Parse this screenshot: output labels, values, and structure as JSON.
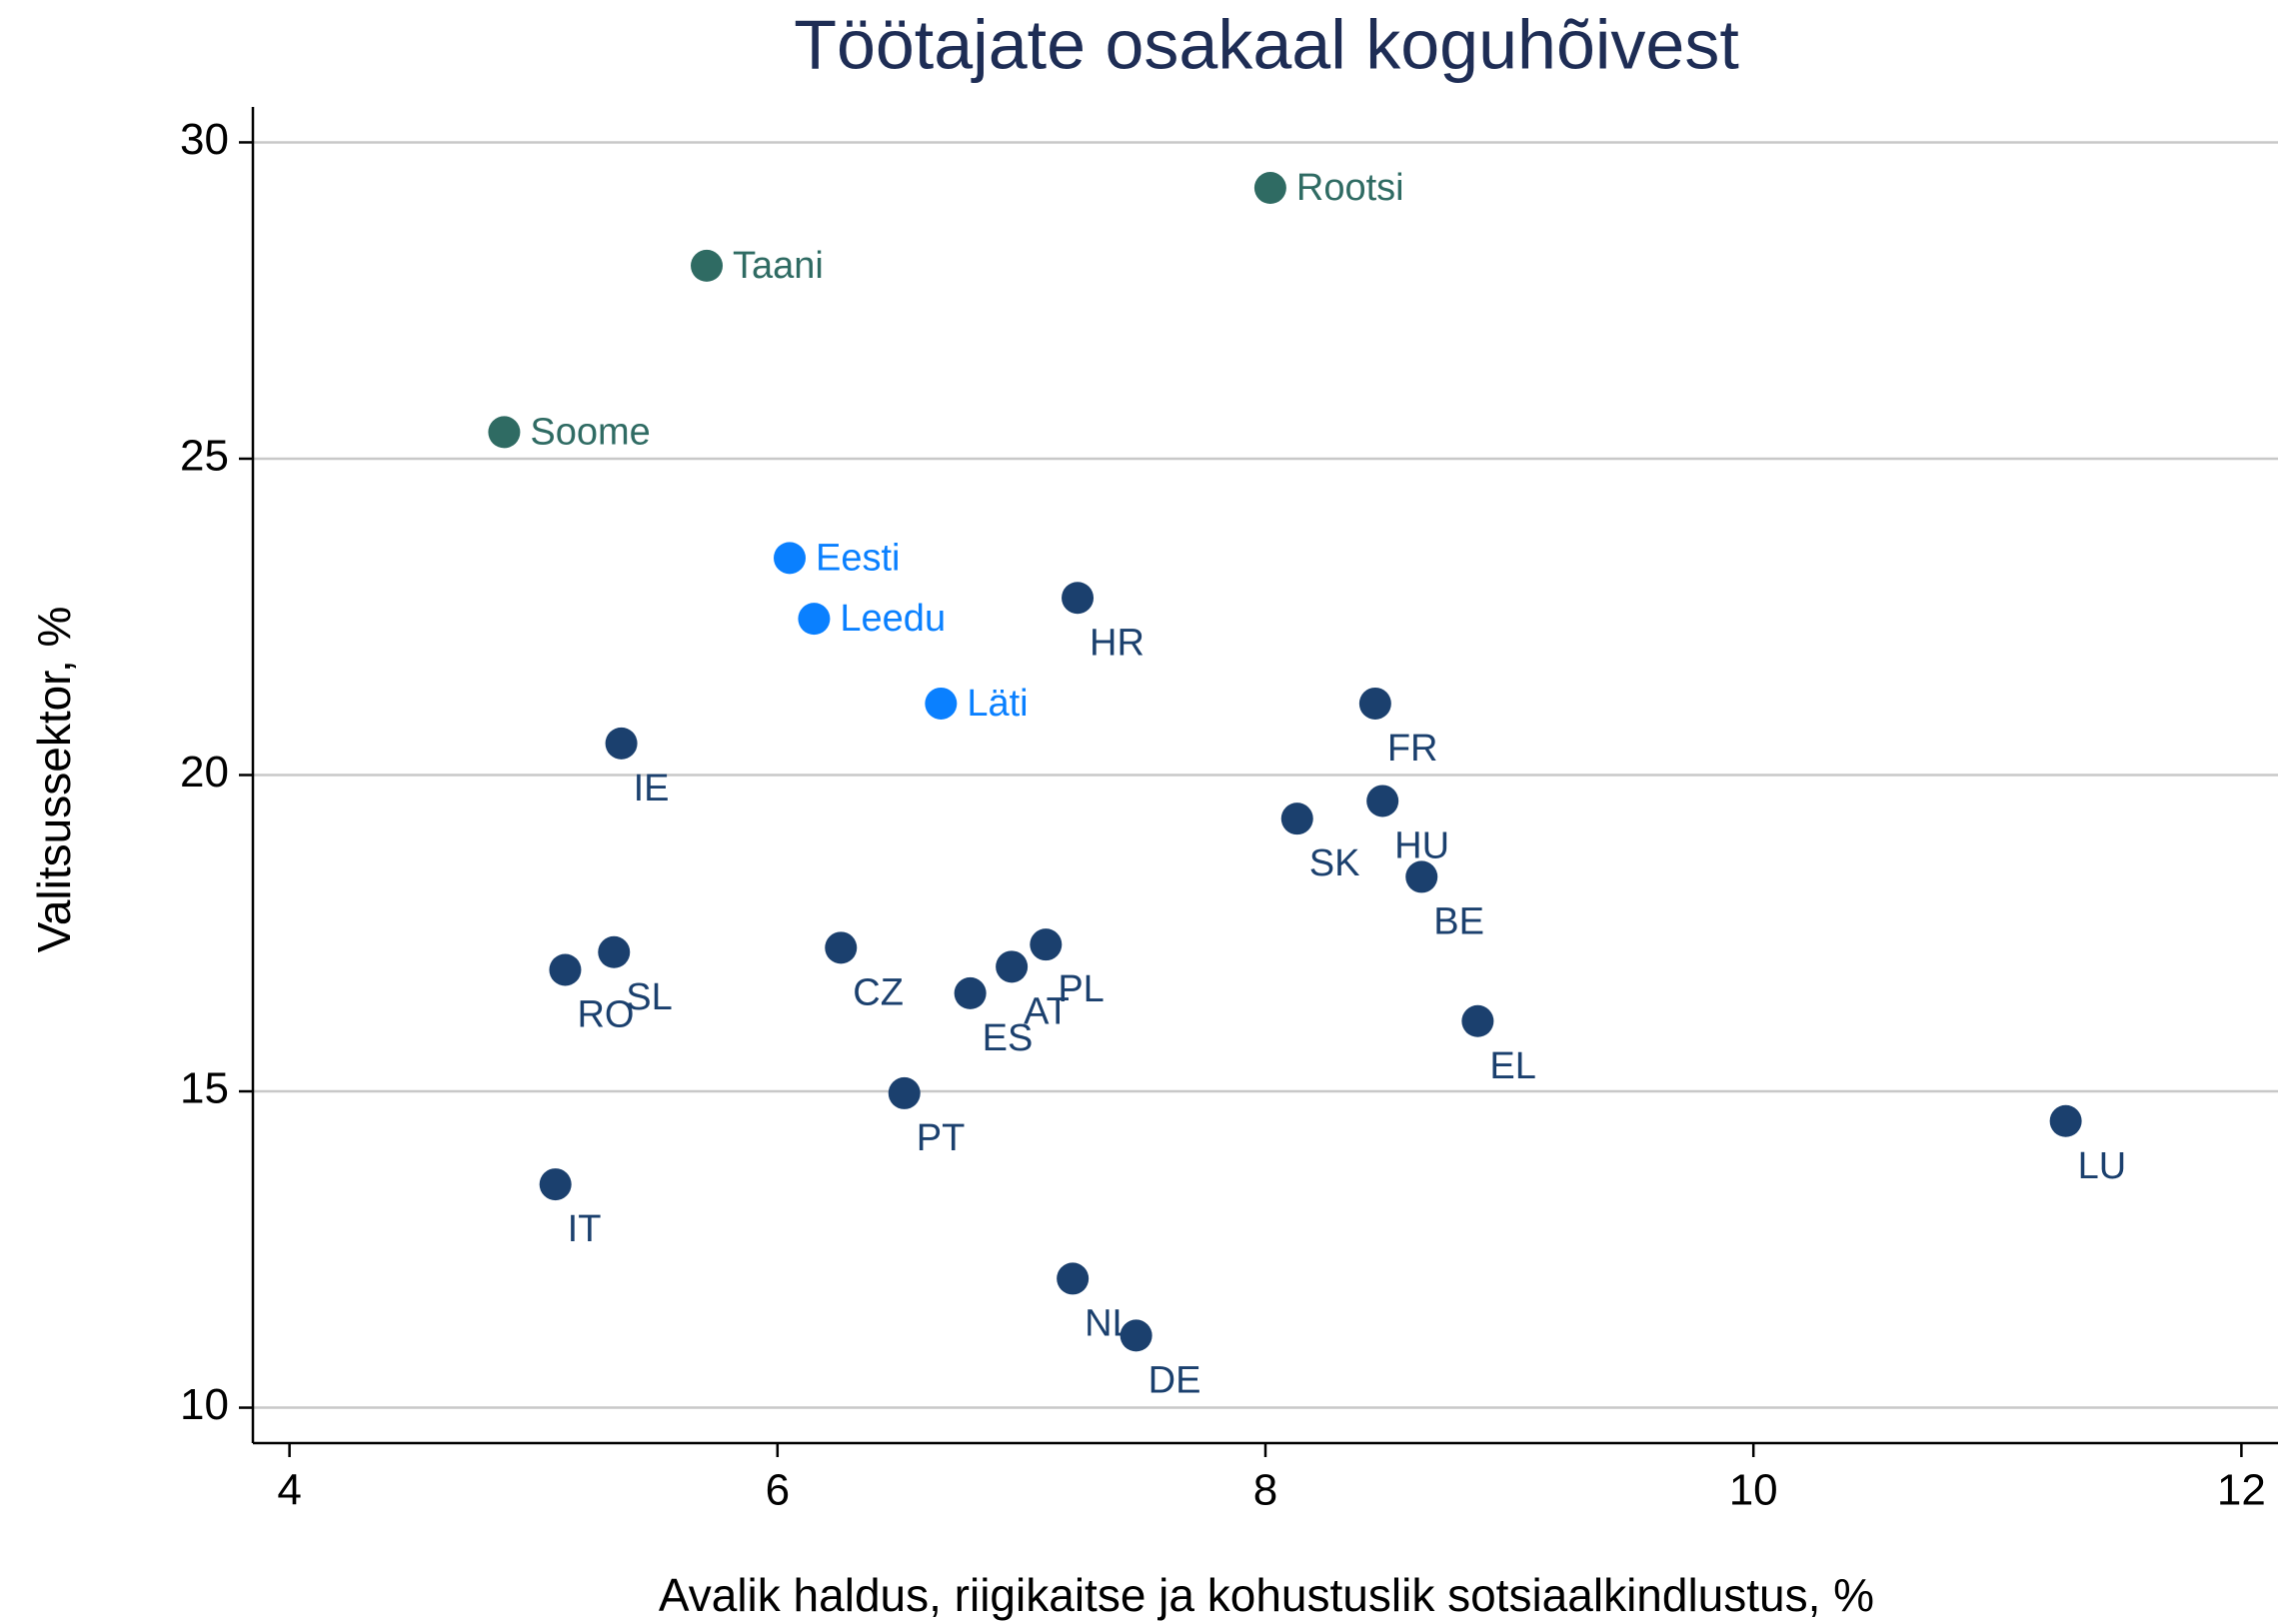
{
  "chart_data": {
    "type": "scatter",
    "title": "Töötajate osakaal koguhõivest",
    "xlabel": "Avalik haldus, riigikaitse ja kohustuslik sotsiaalkindlustus, %",
    "ylabel": "Valitsussektor, %",
    "xlim": [
      3.85,
      12.15
    ],
    "ylim": [
      9.44,
      30.56
    ],
    "xticks": [
      4,
      6,
      8,
      10,
      12
    ],
    "yticks": [
      10,
      15,
      20,
      25,
      30
    ],
    "grid": true,
    "series": [
      {
        "color": "#2f6b63",
        "x": [
          8.02,
          5.71,
          4.88
        ],
        "values": [
          29.28,
          28.05,
          25.42
        ],
        "labels": [
          "Rootsi",
          "Taani",
          "Soome"
        ]
      },
      {
        "color": "#0a80ff",
        "x": [
          6.05,
          6.15,
          6.67
        ],
        "values": [
          23.43,
          22.47,
          21.13
        ],
        "labels": [
          "Eesti",
          "Leedu",
          "Läti"
        ]
      },
      {
        "color": "#1b406e",
        "x": [
          7.23,
          8.45,
          5.36,
          8.13,
          8.48,
          8.64,
          5.13,
          5.33,
          6.26,
          6.79,
          6.96,
          7.1,
          8.87,
          6.52,
          11.28,
          5.09,
          7.21,
          7.47
        ],
        "values": [
          22.8,
          21.13,
          20.5,
          19.31,
          19.59,
          18.39,
          16.92,
          17.2,
          17.27,
          16.55,
          16.97,
          17.32,
          16.11,
          14.97,
          14.53,
          13.53,
          12.04,
          11.14
        ],
        "labels": [
          "HR",
          "FR",
          "IE",
          "SK",
          "HU",
          "BE",
          "RO",
          "SL",
          "CZ",
          "ES",
          "AT",
          "PL",
          "EL",
          "PT",
          "LU",
          "IT",
          "NL",
          "DE"
        ]
      }
    ]
  }
}
